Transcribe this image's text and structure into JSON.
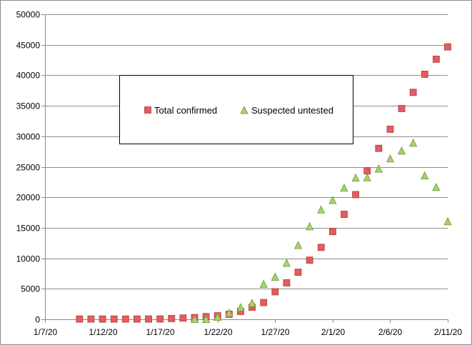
{
  "chart_data": {
    "type": "scatter",
    "title": "",
    "xlabel": "",
    "ylabel": "",
    "xlim": [
      "2020-01-07",
      "2020-02-11"
    ],
    "ylim": [
      0,
      50000
    ],
    "x_ticks": [
      "1/7/20",
      "1/12/20",
      "1/17/20",
      "1/22/20",
      "1/27/20",
      "2/1/20",
      "2/6/20",
      "2/11/20"
    ],
    "y_ticks": [
      "0",
      "5000",
      "10000",
      "15000",
      "20000",
      "25000",
      "30000",
      "35000",
      "40000",
      "45000",
      "50000"
    ],
    "grid": "horizontal",
    "legend_position": "center-left",
    "series": [
      {
        "name": "Total confirmed",
        "marker": "square",
        "color": "#e25d5d",
        "points": [
          {
            "x": "2020-01-10",
            "y": 41
          },
          {
            "x": "2020-01-11",
            "y": 41
          },
          {
            "x": "2020-01-12",
            "y": 41
          },
          {
            "x": "2020-01-13",
            "y": 41
          },
          {
            "x": "2020-01-14",
            "y": 41
          },
          {
            "x": "2020-01-15",
            "y": 41
          },
          {
            "x": "2020-01-16",
            "y": 45
          },
          {
            "x": "2020-01-17",
            "y": 62
          },
          {
            "x": "2020-01-18",
            "y": 121
          },
          {
            "x": "2020-01-19",
            "y": 198
          },
          {
            "x": "2020-01-20",
            "y": 291
          },
          {
            "x": "2020-01-21",
            "y": 440
          },
          {
            "x": "2020-01-22",
            "y": 571
          },
          {
            "x": "2020-01-23",
            "y": 830
          },
          {
            "x": "2020-01-24",
            "y": 1287
          },
          {
            "x": "2020-01-25",
            "y": 1975
          },
          {
            "x": "2020-01-26",
            "y": 2744
          },
          {
            "x": "2020-01-27",
            "y": 4515
          },
          {
            "x": "2020-01-28",
            "y": 5974
          },
          {
            "x": "2020-01-29",
            "y": 7711
          },
          {
            "x": "2020-01-30",
            "y": 9692
          },
          {
            "x": "2020-01-31",
            "y": 11791
          },
          {
            "x": "2020-02-01",
            "y": 14380
          },
          {
            "x": "2020-02-02",
            "y": 17205
          },
          {
            "x": "2020-02-03",
            "y": 20438
          },
          {
            "x": "2020-02-04",
            "y": 24324
          },
          {
            "x": "2020-02-05",
            "y": 28018
          },
          {
            "x": "2020-02-06",
            "y": 31161
          },
          {
            "x": "2020-02-07",
            "y": 34546
          },
          {
            "x": "2020-02-08",
            "y": 37198
          },
          {
            "x": "2020-02-09",
            "y": 40171
          },
          {
            "x": "2020-02-10",
            "y": 42638
          },
          {
            "x": "2020-02-11",
            "y": 44653
          }
        ]
      },
      {
        "name": "Suspected untested",
        "marker": "triangle",
        "color": "#a6d26a",
        "points": [
          {
            "x": "2020-01-20",
            "y": 54
          },
          {
            "x": "2020-01-21",
            "y": 37
          },
          {
            "x": "2020-01-22",
            "y": 393
          },
          {
            "x": "2020-01-23",
            "y": 1072
          },
          {
            "x": "2020-01-24",
            "y": 1965
          },
          {
            "x": "2020-01-25",
            "y": 2684
          },
          {
            "x": "2020-01-26",
            "y": 5794
          },
          {
            "x": "2020-01-27",
            "y": 6973
          },
          {
            "x": "2020-01-28",
            "y": 9239
          },
          {
            "x": "2020-01-29",
            "y": 12167
          },
          {
            "x": "2020-01-30",
            "y": 15238
          },
          {
            "x": "2020-01-31",
            "y": 17988
          },
          {
            "x": "2020-02-01",
            "y": 19544
          },
          {
            "x": "2020-02-02",
            "y": 21558
          },
          {
            "x": "2020-02-03",
            "y": 23214
          },
          {
            "x": "2020-02-04",
            "y": 23260
          },
          {
            "x": "2020-02-05",
            "y": 24702
          },
          {
            "x": "2020-02-06",
            "y": 26359
          },
          {
            "x": "2020-02-07",
            "y": 27657
          },
          {
            "x": "2020-02-08",
            "y": 28942
          },
          {
            "x": "2020-02-09",
            "y": 23589
          },
          {
            "x": "2020-02-10",
            "y": 21675
          },
          {
            "x": "2020-02-11",
            "y": 16067
          }
        ]
      }
    ]
  }
}
